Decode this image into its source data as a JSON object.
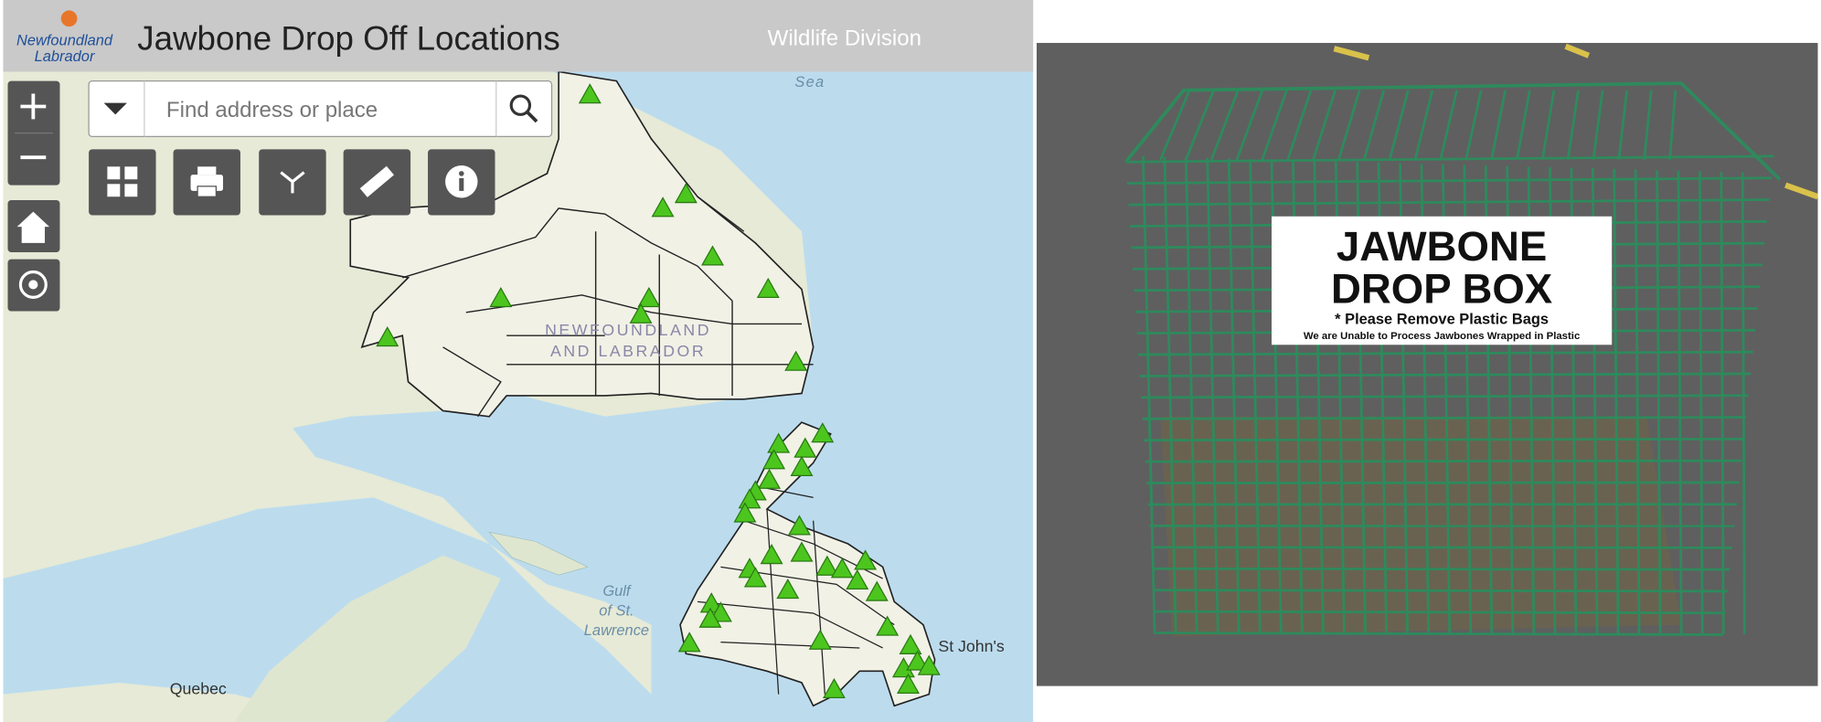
{
  "header": {
    "logo": {
      "line1": "Newfoundland",
      "line2": "Labrador"
    },
    "title": "Jawbone Drop Off Locations",
    "division": "Wildlife Division"
  },
  "search": {
    "placeholder": "Find address or place"
  },
  "map_labels": {
    "sea": "Sea",
    "province_line1": "NEWFOUNDLAND",
    "province_line2": "AND LABRADOR",
    "gulf_line1": "Gulf",
    "gulf_line2": "of St.",
    "gulf_line3": "Lawrence",
    "st_johns": "St John's",
    "quebec": "Quebec"
  },
  "sign": {
    "line1": "JAWBONE",
    "line2": "DROP BOX",
    "line3": "* Please Remove Plastic Bags",
    "line4": "We are Unable to Process Jawbones Wrapped in Plastic"
  }
}
